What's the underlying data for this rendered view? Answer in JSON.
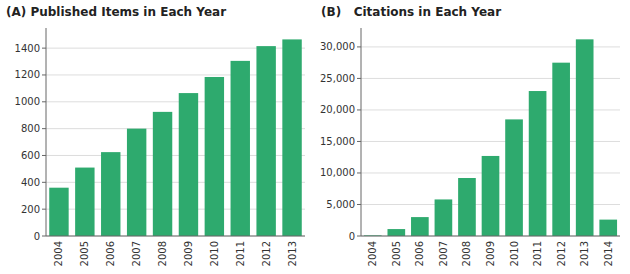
{
  "chart_data": [
    {
      "type": "bar",
      "title": "(A) Published Items in Each Year",
      "categories": [
        "2004",
        "2005",
        "2006",
        "2007",
        "2008",
        "2009",
        "2010",
        "2011",
        "2012",
        "2013"
      ],
      "values": [
        360,
        510,
        625,
        800,
        925,
        1065,
        1185,
        1305,
        1415,
        1465
      ],
      "color": "#2eaa6e",
      "ylim": [
        0,
        1550
      ],
      "yticks": [
        0,
        200,
        400,
        600,
        800,
        1000,
        1200,
        1400
      ],
      "grid": true
    },
    {
      "type": "bar",
      "title": "(B)   Citations in Each Year",
      "categories": [
        "2004",
        "2005",
        "2006",
        "2007",
        "2008",
        "2009",
        "2010",
        "2011",
        "2012",
        "2013",
        "2014"
      ],
      "values": [
        100,
        1100,
        3000,
        5800,
        9200,
        12700,
        18500,
        23000,
        27500,
        31200,
        2600
      ],
      "color": "#2eaa6e",
      "ylim": [
        0,
        33000
      ],
      "yticks": [
        0,
        {
          "value": 5000,
          "label": "5,000"
        },
        {
          "value": 10000,
          "label": "10,000"
        },
        {
          "value": 15000,
          "label": "15,000"
        },
        {
          "value": 20000,
          "label": "20,000"
        },
        {
          "value": 25000,
          "label": "25,000"
        },
        {
          "value": 30000,
          "label": "30,000"
        }
      ],
      "grid": true
    }
  ]
}
